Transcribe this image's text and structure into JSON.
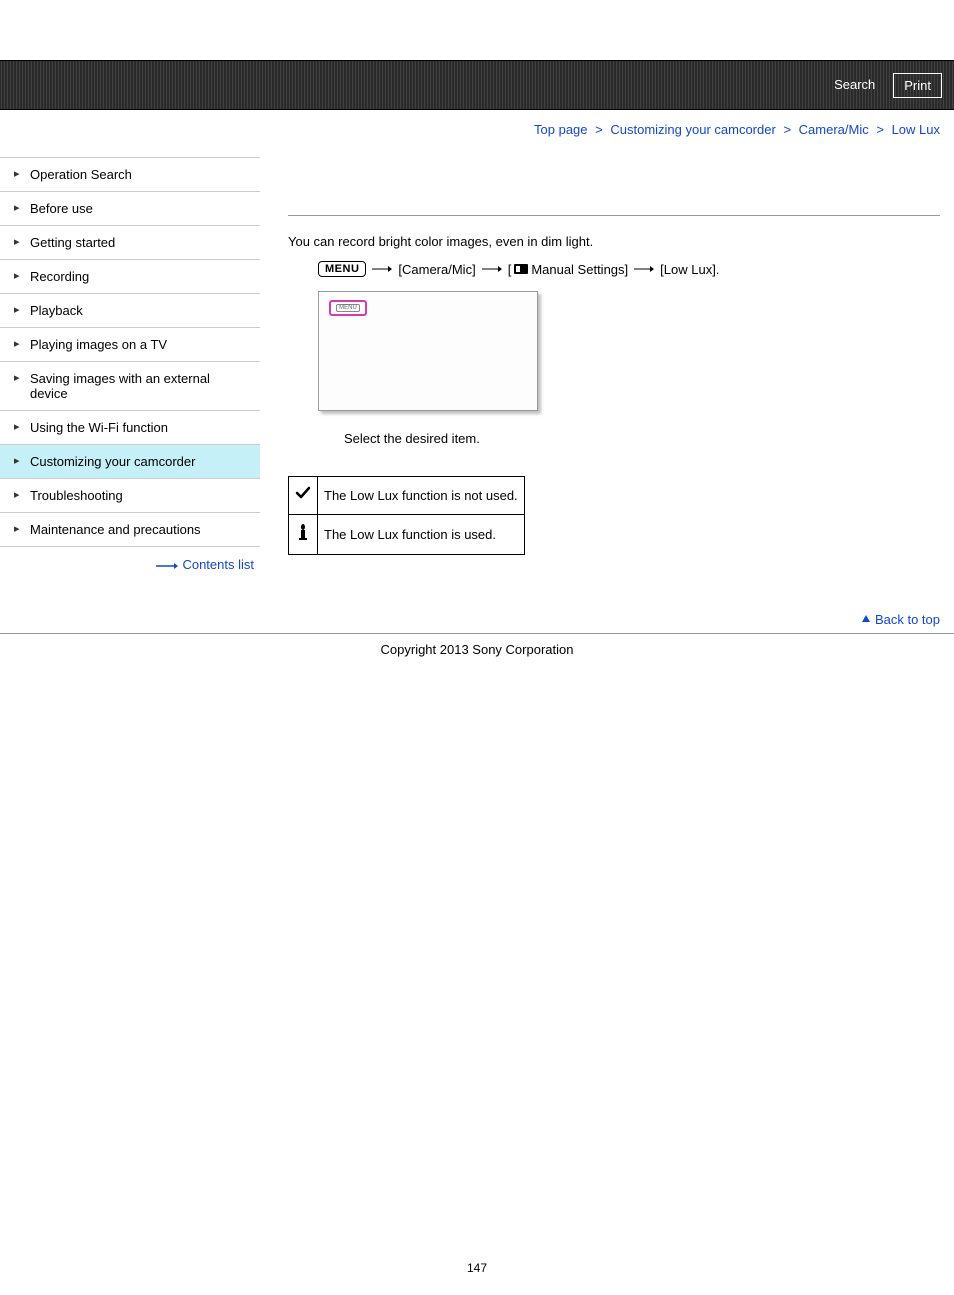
{
  "colors": {
    "link": "#1347c8",
    "active_nav_bg": "#c6f0f7",
    "border": "#cccccc",
    "screen_highlight": "#d63ab5",
    "topbar_dark": "#2a2a2a",
    "topbar_light": "#414141"
  },
  "topbar": {
    "search_label": "Search",
    "print_label": "Print"
  },
  "breadcrumb": {
    "items": [
      "Top page",
      "Customizing your camcorder",
      "Camera/Mic",
      "Low Lux"
    ],
    "separator": ">"
  },
  "sidebar": {
    "items": [
      {
        "label": "Operation Search",
        "active": false
      },
      {
        "label": "Before use",
        "active": false
      },
      {
        "label": "Getting started",
        "active": false
      },
      {
        "label": "Recording",
        "active": false
      },
      {
        "label": "Playback",
        "active": false
      },
      {
        "label": "Playing images on a TV",
        "active": false
      },
      {
        "label": "Saving images with an external device",
        "active": false
      },
      {
        "label": "Using the Wi-Fi function",
        "active": false
      },
      {
        "label": "Customizing your camcorder",
        "active": true
      },
      {
        "label": "Troubleshooting",
        "active": false
      },
      {
        "label": "Maintenance and precautions",
        "active": false
      }
    ],
    "contents_list_label": "Contents list"
  },
  "main": {
    "description": "You can record bright color images, even in dim light.",
    "menu_chip": "MENU",
    "path_seg1": "[Camera/Mic]",
    "path_seg2_prefix": "[",
    "path_seg2_label": "Manual Settings]",
    "path_seg3": "[Low Lux].",
    "select_desc": "Select the desired item.",
    "options": [
      {
        "icon": "check",
        "text": "The Low Lux function is not used."
      },
      {
        "icon": "candle",
        "text": "The Low Lux function is used."
      }
    ]
  },
  "footer": {
    "back_to_top": "Back to top",
    "copyright": "Copyright 2013 Sony Corporation",
    "page_number": "147"
  }
}
